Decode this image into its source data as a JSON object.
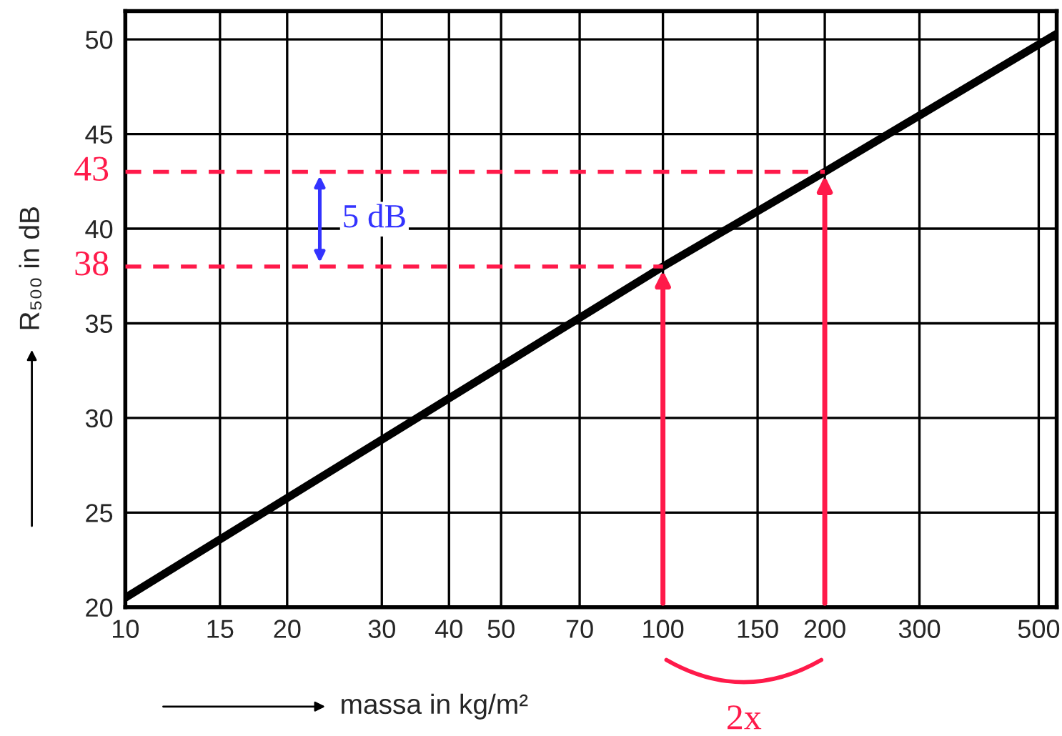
{
  "chart_data": {
    "type": "line",
    "xlabel": "massa in kg/m²",
    "ylabel": "R₅₀₀ in dB",
    "log": "x",
    "grid": true,
    "xlim": [
      10,
      540
    ],
    "ylim": [
      20,
      51.5
    ],
    "xticks": [
      10,
      15,
      20,
      30,
      40,
      50,
      70,
      100,
      150,
      200,
      300,
      500
    ],
    "yticks": [
      20,
      25,
      30,
      35,
      40,
      45,
      50
    ],
    "series": [
      {
        "color": "#000000",
        "x": [
          10,
          100,
          200,
          540
        ],
        "values": [
          20.5,
          38,
          43,
          50.3
        ],
        "line_style": "solid"
      },
      {
        "color": "#ff1a4a",
        "x": [
          10,
          100
        ],
        "values": [
          38,
          38
        ],
        "line_style": "dashed"
      },
      {
        "color": "#ff1a4a",
        "x": [
          10,
          200
        ],
        "values": [
          43,
          43
        ],
        "line_style": "dashed"
      }
    ],
    "annotations": [
      {
        "text": "43",
        "x": 10,
        "y": 43
      },
      {
        "text": "38",
        "x": 10,
        "y": 38
      },
      "5 dB",
      "2x"
    ]
  }
}
